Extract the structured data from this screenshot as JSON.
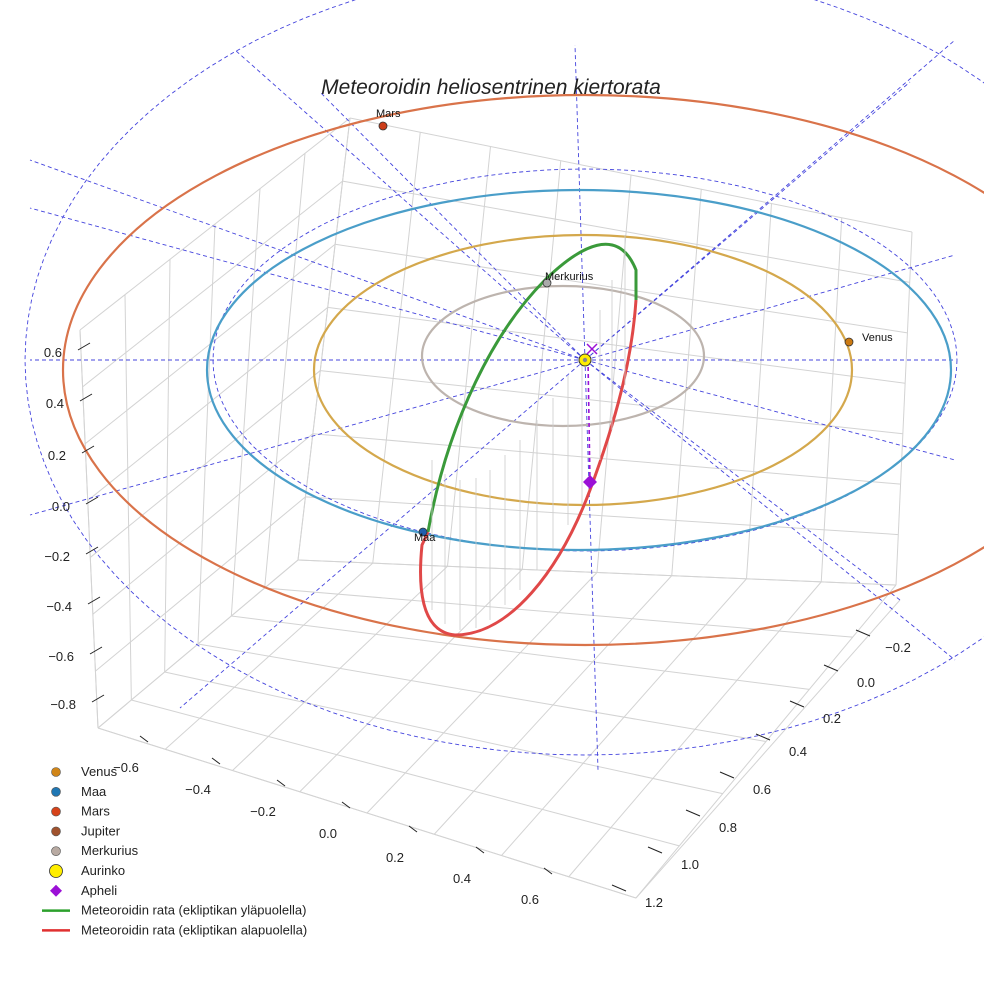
{
  "chart_data": {
    "type": "3d-orbit",
    "title": "Meteoroidin heliosentrinen kiertorata",
    "axes": {
      "x_ticks": [
        "−0.6",
        "−0.4",
        "−0.2",
        "0.0",
        "0.2",
        "0.4",
        "0.6"
      ],
      "y_ticks": [
        "−0.2",
        "0.0",
        "0.2",
        "0.4",
        "0.6",
        "0.8",
        "1.0",
        "1.2"
      ],
      "z_ticks": [
        "0.6",
        "0.4",
        "0.2",
        "0.0",
        "−0.2",
        "−0.4",
        "−0.6",
        "−0.8"
      ],
      "grid": true
    },
    "orbits": [
      {
        "name": "Merkurius",
        "color": "#bdb4ae"
      },
      {
        "name": "Venus",
        "color": "#d4a84c"
      },
      {
        "name": "Maa",
        "color": "#4a9ec9"
      },
      {
        "name": "Mars",
        "color": "#d9734a"
      }
    ],
    "planet_labels": [
      {
        "name": "Mars",
        "color": "#cc3d1a"
      },
      {
        "name": "Merkurius",
        "color": "#aaaaaa"
      },
      {
        "name": "Venus",
        "color": "#cc7a12"
      },
      {
        "name": "Maa",
        "color": "#1f5fae"
      }
    ],
    "meteoroid": {
      "above_color": "#3a9a3a",
      "below_color": "#e04848",
      "aphelion_color": "#9b10d6"
    },
    "legend": {
      "placement": "bottom-left",
      "items": [
        {
          "label": "Venus",
          "marker": "circle",
          "color": "#d08518"
        },
        {
          "label": "Maa",
          "marker": "circle",
          "color": "#1f77b4"
        },
        {
          "label": "Mars",
          "marker": "circle",
          "color": "#d6431a"
        },
        {
          "label": "Jupiter",
          "marker": "circle",
          "color": "#a0522d"
        },
        {
          "label": "Merkurius",
          "marker": "circle",
          "color": "#b8aaa2"
        },
        {
          "label": "Aurinko",
          "marker": "circle-large",
          "color": "#ffee00"
        },
        {
          "label": "Apheli",
          "marker": "diamond",
          "color": "#9b10d6"
        },
        {
          "label": "Meteoroidin rata (ekliptikan yläpuolella)",
          "marker": "line",
          "color": "#2ca02c"
        },
        {
          "label": "Meteoroidin rata (ekliptikan alapuolella)",
          "marker": "line",
          "color": "#e03030"
        }
      ]
    }
  }
}
